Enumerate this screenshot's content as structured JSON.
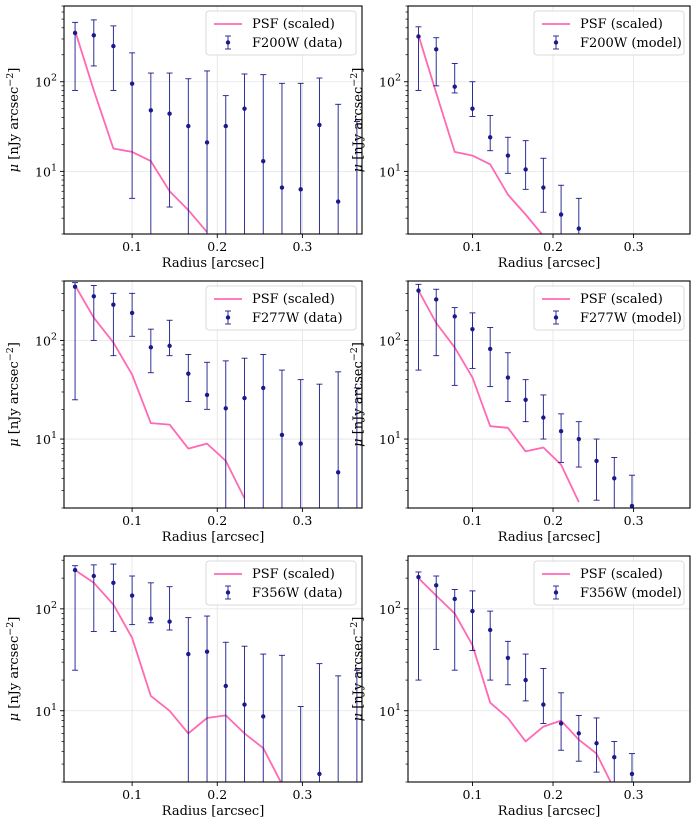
{
  "figure": {
    "psf_color": "#ff69b4",
    "data_color": "#1a1a8c"
  },
  "chart_data": [
    {
      "type": "scatter",
      "panel": "F200W data",
      "xlabel": "Radius [arcsec]",
      "ylabel": "μ [nJy arcsec⁻²]",
      "yscale": "log",
      "xlim": [
        0.02,
        0.37
      ],
      "ylim": [
        2,
        700
      ],
      "xticks": [
        0.1,
        0.2,
        0.3
      ],
      "xtick_labels": [
        "0.1",
        "0.2",
        "0.3"
      ],
      "yticks": [
        10,
        100
      ],
      "ytick_labels": [
        "10¹",
        "10²"
      ],
      "grid": true,
      "legend_position": "top-right",
      "legend": [
        "PSF (scaled)",
        "F200W (data)"
      ],
      "psf": {
        "name": "PSF (scaled)",
        "x": [
          0.033,
          0.055,
          0.078,
          0.1,
          0.122,
          0.144,
          0.166,
          0.188
        ],
        "y": [
          370,
          80,
          18,
          16.5,
          13,
          6,
          3.7,
          2.1
        ]
      },
      "measurements": {
        "name": "F200W (data)",
        "x": [
          0.033,
          0.055,
          0.078,
          0.1,
          0.122,
          0.144,
          0.166,
          0.188,
          0.21,
          0.232,
          0.254,
          0.276,
          0.298,
          0.32,
          0.342,
          0.364
        ],
        "y": [
          350,
          330,
          250,
          95,
          48,
          44,
          32,
          21,
          32,
          50,
          13,
          6.6,
          6.3,
          33,
          4.6,
          null
        ],
        "yerr_low": [
          270,
          180,
          170,
          90,
          46,
          40,
          31,
          20.5,
          31,
          49,
          12.9,
          6.6,
          6.3,
          33,
          4.6,
          null
        ],
        "yerr_high": [
          460,
          490,
          420,
          210,
          125,
          125,
          108,
          132,
          70,
          122,
          120,
          96,
          96,
          110,
          56,
          36
        ]
      }
    },
    {
      "type": "scatter",
      "panel": "F200W model",
      "xlabel": "Radius [arcsec]",
      "ylabel": "μ [nJy arcsec⁻²]",
      "yscale": "log",
      "xlim": [
        0.02,
        0.37
      ],
      "ylim": [
        2,
        700
      ],
      "xticks": [
        0.1,
        0.2,
        0.3
      ],
      "xtick_labels": [
        "0.1",
        "0.2",
        "0.3"
      ],
      "yticks": [
        10,
        100
      ],
      "ytick_labels": [
        "10¹",
        "10²"
      ],
      "grid": true,
      "legend_position": "top-right",
      "legend": [
        "PSF (scaled)",
        "F200W (model)"
      ],
      "psf": {
        "name": "PSF (scaled)",
        "x": [
          0.033,
          0.055,
          0.078,
          0.1,
          0.122,
          0.144,
          0.166,
          0.188
        ],
        "y": [
          330,
          75,
          16.5,
          15,
          12,
          5.5,
          3.3,
          1.9
        ]
      },
      "measurements": {
        "name": "F200W (model)",
        "x": [
          0.033,
          0.055,
          0.078,
          0.1,
          0.122,
          0.144,
          0.166,
          0.188,
          0.21,
          0.232,
          0.254
        ],
        "y": [
          320,
          230,
          88,
          50,
          24,
          15,
          10.5,
          6.6,
          3.3,
          2.3,
          null
        ],
        "yerr_low": [
          240,
          140,
          13,
          9,
          7,
          5.5,
          4.2,
          3.1,
          2.2,
          1.6,
          null
        ],
        "yerr_high": [
          410,
          310,
          160,
          100,
          42,
          24,
          22,
          14,
          7,
          5,
          null
        ]
      }
    },
    {
      "type": "scatter",
      "panel": "F277W data",
      "xlabel": "Radius [arcsec]",
      "ylabel": "μ [nJy arcsec⁻²]",
      "yscale": "log",
      "xlim": [
        0.02,
        0.37
      ],
      "ylim": [
        2,
        400
      ],
      "xticks": [
        0.1,
        0.2,
        0.3
      ],
      "xtick_labels": [
        "0.1",
        "0.2",
        "0.3"
      ],
      "yticks": [
        10,
        100
      ],
      "ytick_labels": [
        "10¹",
        "10²"
      ],
      "grid": true,
      "legend_position": "top-right",
      "legend": [
        "PSF (scaled)",
        "F277W (data)"
      ],
      "psf": {
        "name": "PSF (scaled)",
        "x": [
          0.033,
          0.055,
          0.078,
          0.1,
          0.122,
          0.144,
          0.166,
          0.188,
          0.21,
          0.232
        ],
        "y": [
          360,
          170,
          95,
          45,
          14.5,
          14,
          8,
          9,
          6,
          2.5
        ]
      },
      "measurements": {
        "name": "F277W (data)",
        "x": [
          0.033,
          0.055,
          0.078,
          0.1,
          0.122,
          0.144,
          0.166,
          0.188,
          0.21,
          0.232,
          0.254,
          0.276,
          0.298,
          0.32,
          0.342,
          0.364
        ],
        "y": [
          350,
          280,
          230,
          190,
          85,
          88,
          46,
          28,
          20.5,
          26,
          33,
          11,
          9,
          null,
          4.6,
          null
        ],
        "yerr_low": [
          325,
          180,
          160,
          80,
          38,
          18,
          22,
          8,
          20.5,
          26,
          33,
          11,
          9,
          null,
          4.6,
          null
        ],
        "yerr_high": [
          385,
          360,
          300,
          300,
          130,
          160,
          72,
          60,
          62,
          66,
          72,
          50,
          40,
          36,
          48,
          33
        ]
      }
    },
    {
      "type": "scatter",
      "panel": "F277W model",
      "xlabel": "Radius [arcsec]",
      "ylabel": "μ [nJy arcsec⁻²]",
      "yscale": "log",
      "xlim": [
        0.02,
        0.37
      ],
      "ylim": [
        2,
        400
      ],
      "xticks": [
        0.1,
        0.2,
        0.3
      ],
      "xtick_labels": [
        "0.1",
        "0.2",
        "0.3"
      ],
      "yticks": [
        10,
        100
      ],
      "ytick_labels": [
        "10¹",
        "10²"
      ],
      "grid": true,
      "legend_position": "top-right",
      "legend": [
        "PSF (scaled)",
        "F277W (model)"
      ],
      "psf": {
        "name": "PSF (scaled)",
        "x": [
          0.033,
          0.055,
          0.078,
          0.1,
          0.122,
          0.144,
          0.166,
          0.188,
          0.21,
          0.232
        ],
        "y": [
          320,
          150,
          85,
          42,
          13.5,
          13,
          7.5,
          8.2,
          5.5,
          2.3
        ]
      },
      "measurements": {
        "name": "F277W (model)",
        "x": [
          0.033,
          0.055,
          0.078,
          0.1,
          0.122,
          0.144,
          0.166,
          0.188,
          0.21,
          0.232,
          0.254,
          0.276,
          0.298,
          0.32
        ],
        "y": [
          320,
          260,
          175,
          130,
          82,
          42,
          25,
          16.5,
          12,
          10,
          6,
          4,
          2.1,
          null
        ],
        "yerr_low": [
          270,
          190,
          140,
          78,
          48,
          18,
          10,
          6.5,
          6.2,
          4.8,
          3.6,
          2.2,
          1.5,
          null
        ],
        "yerr_high": [
          370,
          330,
          215,
          190,
          135,
          75,
          40,
          28,
          18,
          15,
          10,
          6.5,
          4.3,
          null
        ]
      }
    },
    {
      "type": "scatter",
      "panel": "F356W data",
      "xlabel": "Radius [arcsec]",
      "ylabel": "μ [nJy arcsec⁻²]",
      "yscale": "log",
      "xlim": [
        0.02,
        0.37
      ],
      "ylim": [
        2,
        330
      ],
      "xticks": [
        0.1,
        0.2,
        0.3
      ],
      "xtick_labels": [
        "0.1",
        "0.2",
        "0.3"
      ],
      "yticks": [
        10,
        100
      ],
      "ytick_labels": [
        "10¹",
        "10²"
      ],
      "grid": true,
      "legend_position": "top-right",
      "legend": [
        "PSF (scaled)",
        "F356W (data)"
      ],
      "psf": {
        "name": "PSF (scaled)",
        "x": [
          0.033,
          0.055,
          0.078,
          0.1,
          0.122,
          0.144,
          0.166,
          0.188,
          0.21,
          0.232,
          0.254,
          0.276
        ],
        "y": [
          240,
          180,
          110,
          52,
          14,
          10,
          6,
          8.5,
          9,
          6,
          4.3,
          1.9
        ]
      },
      "measurements": {
        "name": "F356W (data)",
        "x": [
          0.033,
          0.055,
          0.078,
          0.1,
          0.122,
          0.144,
          0.166,
          0.188,
          0.21,
          0.232,
          0.254,
          0.276,
          0.298,
          0.32,
          0.342,
          0.364
        ],
        "y": [
          240,
          210,
          180,
          135,
          80,
          75,
          36,
          38,
          17.5,
          11.5,
          8.8,
          null,
          null,
          2.4,
          null,
          null
        ],
        "yerr_low": [
          215,
          150,
          120,
          65,
          7,
          13,
          36,
          38,
          17.5,
          11.5,
          8.8,
          null,
          null,
          2.4,
          null,
          null
        ],
        "yerr_high": [
          265,
          270,
          275,
          210,
          180,
          165,
          82,
          85,
          47,
          43,
          36,
          35,
          11,
          29,
          22,
          25
        ]
      }
    },
    {
      "type": "scatter",
      "panel": "F356W model",
      "xlabel": "Radius [arcsec]",
      "ylabel": "μ [nJy arcsec⁻²]",
      "yscale": "log",
      "xlim": [
        0.02,
        0.37
      ],
      "ylim": [
        2,
        330
      ],
      "xticks": [
        0.1,
        0.2,
        0.3
      ],
      "xtick_labels": [
        "0.1",
        "0.2",
        "0.3"
      ],
      "yticks": [
        10,
        100
      ],
      "ytick_labels": [
        "10¹",
        "10²"
      ],
      "grid": true,
      "legend_position": "top-right",
      "legend": [
        "PSF (scaled)",
        "F356W (model)"
      ],
      "psf": {
        "name": "PSF (scaled)",
        "x": [
          0.033,
          0.055,
          0.078,
          0.1,
          0.122,
          0.144,
          0.166,
          0.188,
          0.21,
          0.232,
          0.254,
          0.276
        ],
        "y": [
          200,
          135,
          90,
          44,
          12,
          8.5,
          5,
          7,
          8,
          5.2,
          3.8,
          1.7
        ]
      },
      "measurements": {
        "name": "F356W (model)",
        "x": [
          0.033,
          0.055,
          0.078,
          0.1,
          0.122,
          0.144,
          0.166,
          0.188,
          0.21,
          0.232,
          0.254,
          0.276,
          0.298,
          0.32
        ],
        "y": [
          205,
          170,
          125,
          95,
          62,
          33,
          20,
          11.5,
          7.5,
          6,
          4.8,
          3.5,
          2.4,
          null
        ],
        "yerr_low": [
          185,
          130,
          100,
          56,
          42,
          15,
          7.5,
          4,
          3.4,
          2.8,
          2.3,
          1.9,
          1.6,
          null
        ],
        "yerr_high": [
          230,
          210,
          155,
          150,
          95,
          48,
          36,
          26,
          15,
          9,
          8.5,
          5,
          3.8,
          null
        ]
      }
    }
  ]
}
